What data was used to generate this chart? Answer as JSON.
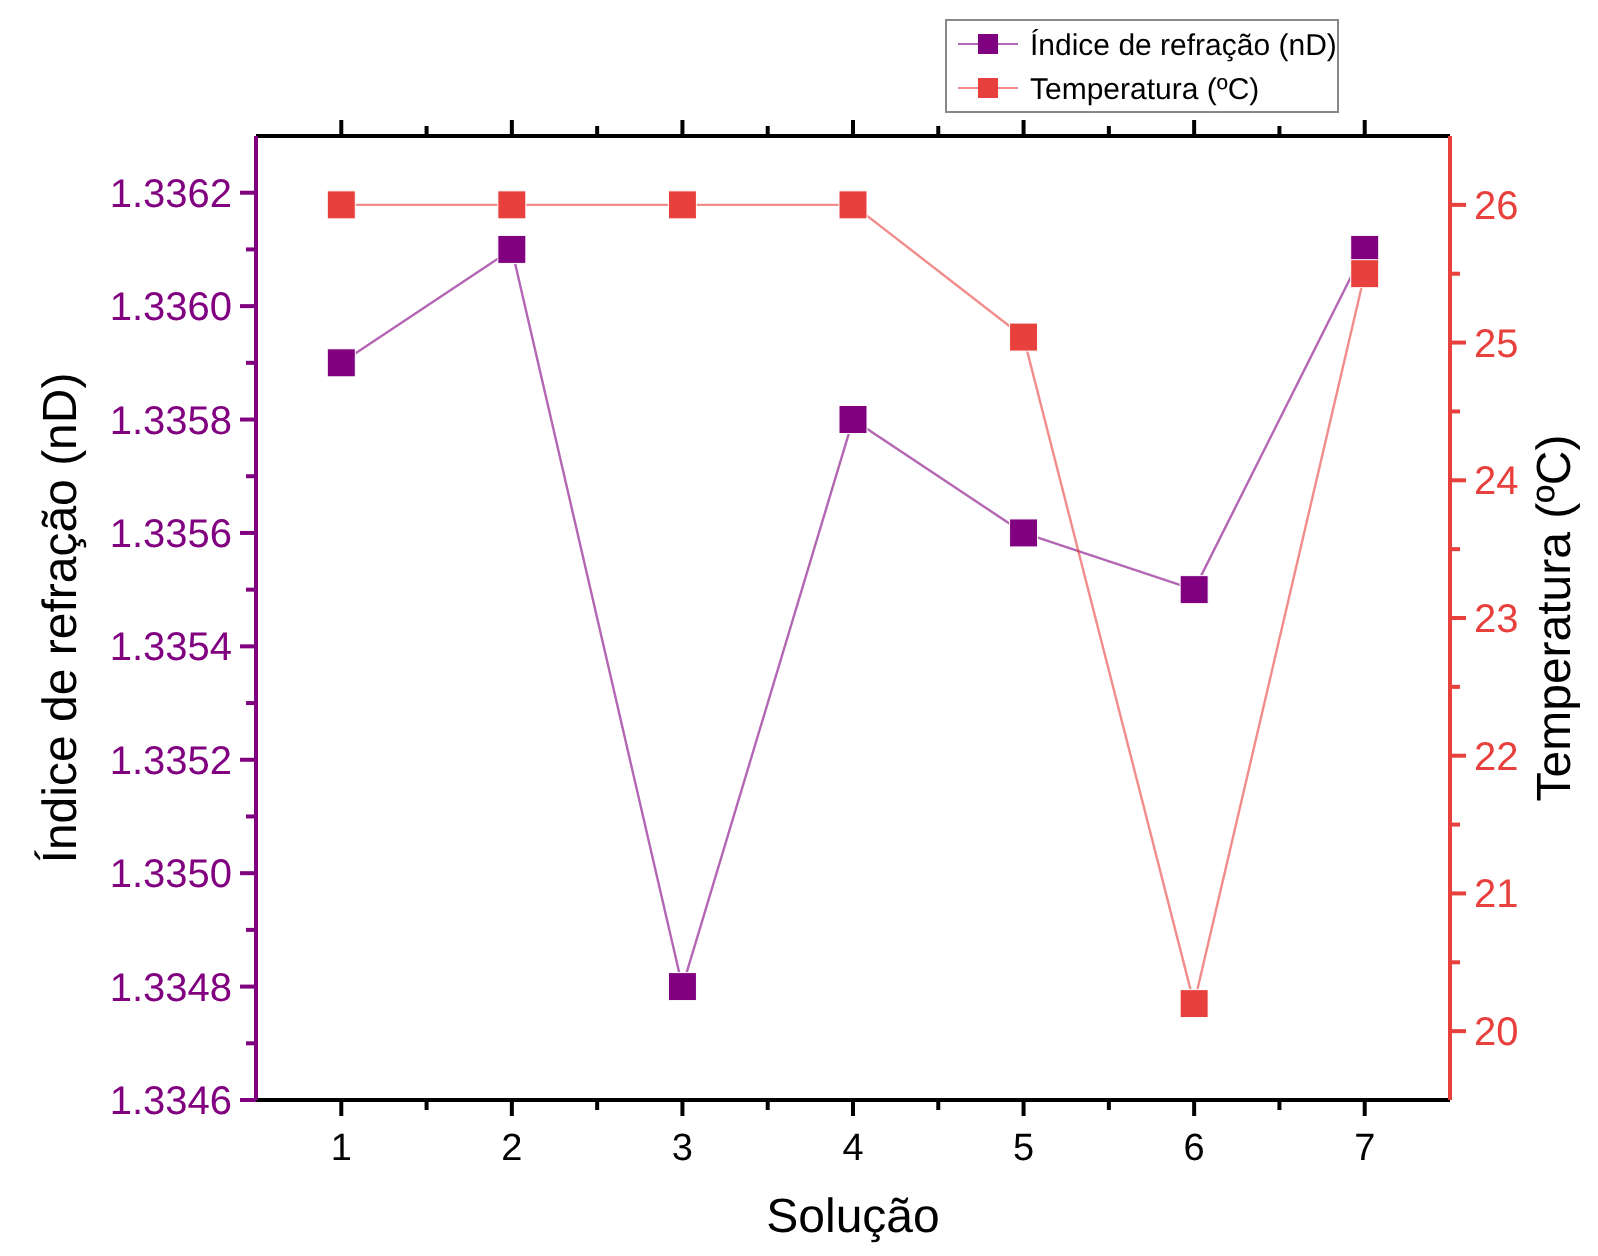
{
  "chart_data": {
    "type": "line",
    "xlabel": "Solução",
    "ylabel": "Índice de refração (nD)",
    "y2label": "Temperatura (ºC)",
    "x": [
      1,
      2,
      3,
      4,
      5,
      6,
      7
    ],
    "xlim": [
      0.5,
      7.5
    ],
    "xticks": [
      1,
      {
        "value": 1.5,
        "label": null
      },
      2,
      {
        "value": 2.5,
        "label": null
      },
      3,
      {
        "value": 3.5,
        "label": null
      },
      4,
      {
        "value": 4.5,
        "label": null
      },
      5,
      {
        "value": 5.5,
        "label": null
      },
      6,
      {
        "value": 6.5,
        "label": null
      },
      7
    ],
    "ylim": [
      1.3346,
      1.3363
    ],
    "yticks": [
      {
        "value": 1.3346,
        "label": "1.3346"
      },
      {
        "value": 1.3347,
        "label": null
      },
      {
        "value": 1.3348,
        "label": "1.3348"
      },
      {
        "value": 1.3349,
        "label": null
      },
      {
        "value": 1.335,
        "label": "1.3350"
      },
      {
        "value": 1.3351,
        "label": null
      },
      {
        "value": 1.3352,
        "label": "1.3352"
      },
      {
        "value": 1.3353,
        "label": null
      },
      {
        "value": 1.3354,
        "label": "1.3354"
      },
      {
        "value": 1.3355,
        "label": null
      },
      {
        "value": 1.3356,
        "label": "1.3356"
      },
      {
        "value": 1.3357,
        "label": null
      },
      {
        "value": 1.3358,
        "label": "1.3358"
      },
      {
        "value": 1.3359,
        "label": null
      },
      {
        "value": 1.336,
        "label": "1.3360"
      },
      {
        "value": 1.3361,
        "label": null
      },
      {
        "value": 1.3362,
        "label": "1.3362"
      }
    ],
    "y2lim": [
      19.5,
      26.5
    ],
    "y2ticks": [
      20,
      {
        "value": 20.5,
        "label": null
      },
      21,
      {
        "value": 21.5,
        "label": null
      },
      22,
      {
        "value": 22.5,
        "label": null
      },
      23,
      {
        "value": 23.5,
        "label": null
      },
      24,
      {
        "value": 24.5,
        "label": null
      },
      25,
      {
        "value": 25.5,
        "label": null
      },
      26
    ],
    "marker": "square",
    "line_style": "solid",
    "legend": "top right",
    "grid": false,
    "series": [
      {
        "name": "Índice de refração (nD)",
        "color": "#800080",
        "values": [
          1.3359,
          1.3361,
          1.3348,
          1.3358,
          1.3356,
          1.3355,
          1.3361
        ]
      },
      {
        "name": "Temperatura (ºC)",
        "color": "#e8403c",
        "axis": "y2",
        "values": [
          26,
          26,
          26,
          26,
          25.04,
          20.2,
          25.5
        ]
      }
    ]
  }
}
